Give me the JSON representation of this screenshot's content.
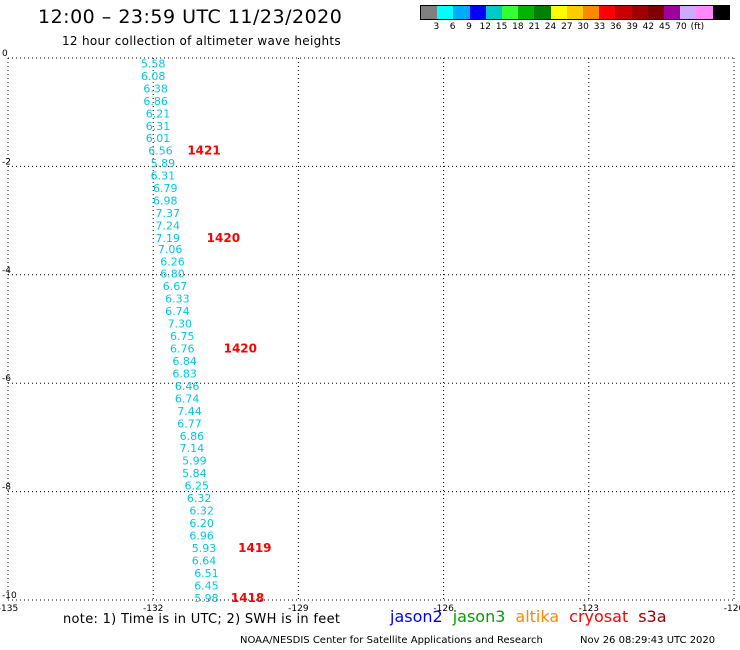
{
  "header": {
    "title": "12:00 – 23:59 UTC 11/23/2020",
    "subtitle": "12 hour collection of altimeter wave heights"
  },
  "legend": {
    "colors": [
      "#808080",
      "#00ffff",
      "#00aaff",
      "#0000ff",
      "#00c8c8",
      "#33ff33",
      "#00b400",
      "#008000",
      "#ffff00",
      "#ffcc00",
      "#ff8800",
      "#ff0000",
      "#c80000",
      "#a00000",
      "#800000",
      "#a000a0",
      "#ccaaff",
      "#ff88ff",
      "#000000"
    ],
    "labels": [
      "3",
      "6",
      "9",
      "12",
      "15",
      "18",
      "21",
      "24",
      "27",
      "30",
      "33",
      "36",
      "39",
      "42",
      "45",
      "70",
      "(ft)"
    ]
  },
  "footer": {
    "note": "note: 1) Time is in UTC; 2) SWH is in feet",
    "satellites": [
      {
        "name": "jason2",
        "color": "#0000ff"
      },
      {
        "name": "jason3",
        "color": "#00a000"
      },
      {
        "name": "altika",
        "color": "#ff8800"
      },
      {
        "name": "cryosat",
        "color": "#ff0000"
      },
      {
        "name": "s3a",
        "color": "#a00000"
      }
    ],
    "credit": "NOAA/NESDIS Center for Satellite Applications and Research",
    "timestamp": "Nov 26 08:29:43 UTC 2020"
  },
  "chart_data": {
    "type": "scatter",
    "xlim": [
      -135,
      -120
    ],
    "ylim": [
      -10,
      0
    ],
    "xticks": [
      -135,
      -132,
      -129,
      -126,
      -123,
      -120
    ],
    "yticks": [
      0,
      -2,
      -4,
      -6,
      -8,
      -10
    ],
    "grid": true,
    "point_color": "#00c8e6",
    "time_color": "#ff0000",
    "points": [
      {
        "lon": -132.0,
        "lat": -0.1,
        "swh": "5.58"
      },
      {
        "lon": -132.0,
        "lat": -0.33,
        "swh": "6.08"
      },
      {
        "lon": -131.95,
        "lat": -0.56,
        "swh": "6.38"
      },
      {
        "lon": -131.95,
        "lat": -0.79,
        "swh": "6.86"
      },
      {
        "lon": -131.9,
        "lat": -1.02,
        "swh": "6.21"
      },
      {
        "lon": -131.9,
        "lat": -1.25,
        "swh": "6.31"
      },
      {
        "lon": -131.9,
        "lat": -1.48,
        "swh": "6.01"
      },
      {
        "lon": -131.85,
        "lat": -1.71,
        "swh": "6.56"
      },
      {
        "lon": -131.8,
        "lat": -1.94,
        "swh": "5.89"
      },
      {
        "lon": -131.8,
        "lat": -2.17,
        "swh": "6.31"
      },
      {
        "lon": -131.75,
        "lat": -2.4,
        "swh": "6.79"
      },
      {
        "lon": -131.75,
        "lat": -2.63,
        "swh": "6.98"
      },
      {
        "lon": -131.7,
        "lat": -2.86,
        "swh": "7.37"
      },
      {
        "lon": -131.7,
        "lat": -3.09,
        "swh": "7.24"
      },
      {
        "lon": -131.7,
        "lat": -3.32,
        "swh": "7.19"
      },
      {
        "lon": -131.65,
        "lat": -3.52,
        "swh": "7.06"
      },
      {
        "lon": -131.6,
        "lat": -3.75,
        "swh": "6.26"
      },
      {
        "lon": -131.6,
        "lat": -3.98,
        "swh": "6.80"
      },
      {
        "lon": -131.55,
        "lat": -4.21,
        "swh": "6.67"
      },
      {
        "lon": -131.5,
        "lat": -4.44,
        "swh": "6.33"
      },
      {
        "lon": -131.5,
        "lat": -4.67,
        "swh": "6.74"
      },
      {
        "lon": -131.45,
        "lat": -4.9,
        "swh": "7.30"
      },
      {
        "lon": -131.4,
        "lat": -5.13,
        "swh": "6.75"
      },
      {
        "lon": -131.4,
        "lat": -5.36,
        "swh": "6.76"
      },
      {
        "lon": -131.35,
        "lat": -5.59,
        "swh": "6.84"
      },
      {
        "lon": -131.35,
        "lat": -5.82,
        "swh": "6.83"
      },
      {
        "lon": -131.3,
        "lat": -6.05,
        "swh": "6.46"
      },
      {
        "lon": -131.3,
        "lat": -6.28,
        "swh": "6.74"
      },
      {
        "lon": -131.25,
        "lat": -6.51,
        "swh": "7.44"
      },
      {
        "lon": -131.25,
        "lat": -6.74,
        "swh": "6.77"
      },
      {
        "lon": -131.2,
        "lat": -6.97,
        "swh": "6.86"
      },
      {
        "lon": -131.2,
        "lat": -7.2,
        "swh": "7.14"
      },
      {
        "lon": -131.15,
        "lat": -7.43,
        "swh": "5.99"
      },
      {
        "lon": -131.15,
        "lat": -7.66,
        "swh": "5.84"
      },
      {
        "lon": -131.1,
        "lat": -7.89,
        "swh": "6.25"
      },
      {
        "lon": -131.05,
        "lat": -8.12,
        "swh": "6.32"
      },
      {
        "lon": -131.0,
        "lat": -8.35,
        "swh": "6.32"
      },
      {
        "lon": -131.0,
        "lat": -8.58,
        "swh": "6.20"
      },
      {
        "lon": -131.0,
        "lat": -8.81,
        "swh": "6.96"
      },
      {
        "lon": -130.95,
        "lat": -9.04,
        "swh": "5.93"
      },
      {
        "lon": -130.95,
        "lat": -9.27,
        "swh": "6.64"
      },
      {
        "lon": -130.9,
        "lat": -9.5,
        "swh": "6.51"
      },
      {
        "lon": -130.9,
        "lat": -9.73,
        "swh": "6.45"
      },
      {
        "lon": -130.9,
        "lat": -9.96,
        "swh": "5.98"
      }
    ],
    "time_labels": [
      {
        "lon": -130.95,
        "lat": -1.71,
        "text": "1421"
      },
      {
        "lon": -130.55,
        "lat": -3.32,
        "text": "1420"
      },
      {
        "lon": -130.2,
        "lat": -5.36,
        "text": "1420"
      },
      {
        "lon": -129.9,
        "lat": -9.04,
        "text": "1419"
      },
      {
        "lon": -130.05,
        "lat": -9.96,
        "text": "1418"
      }
    ]
  }
}
